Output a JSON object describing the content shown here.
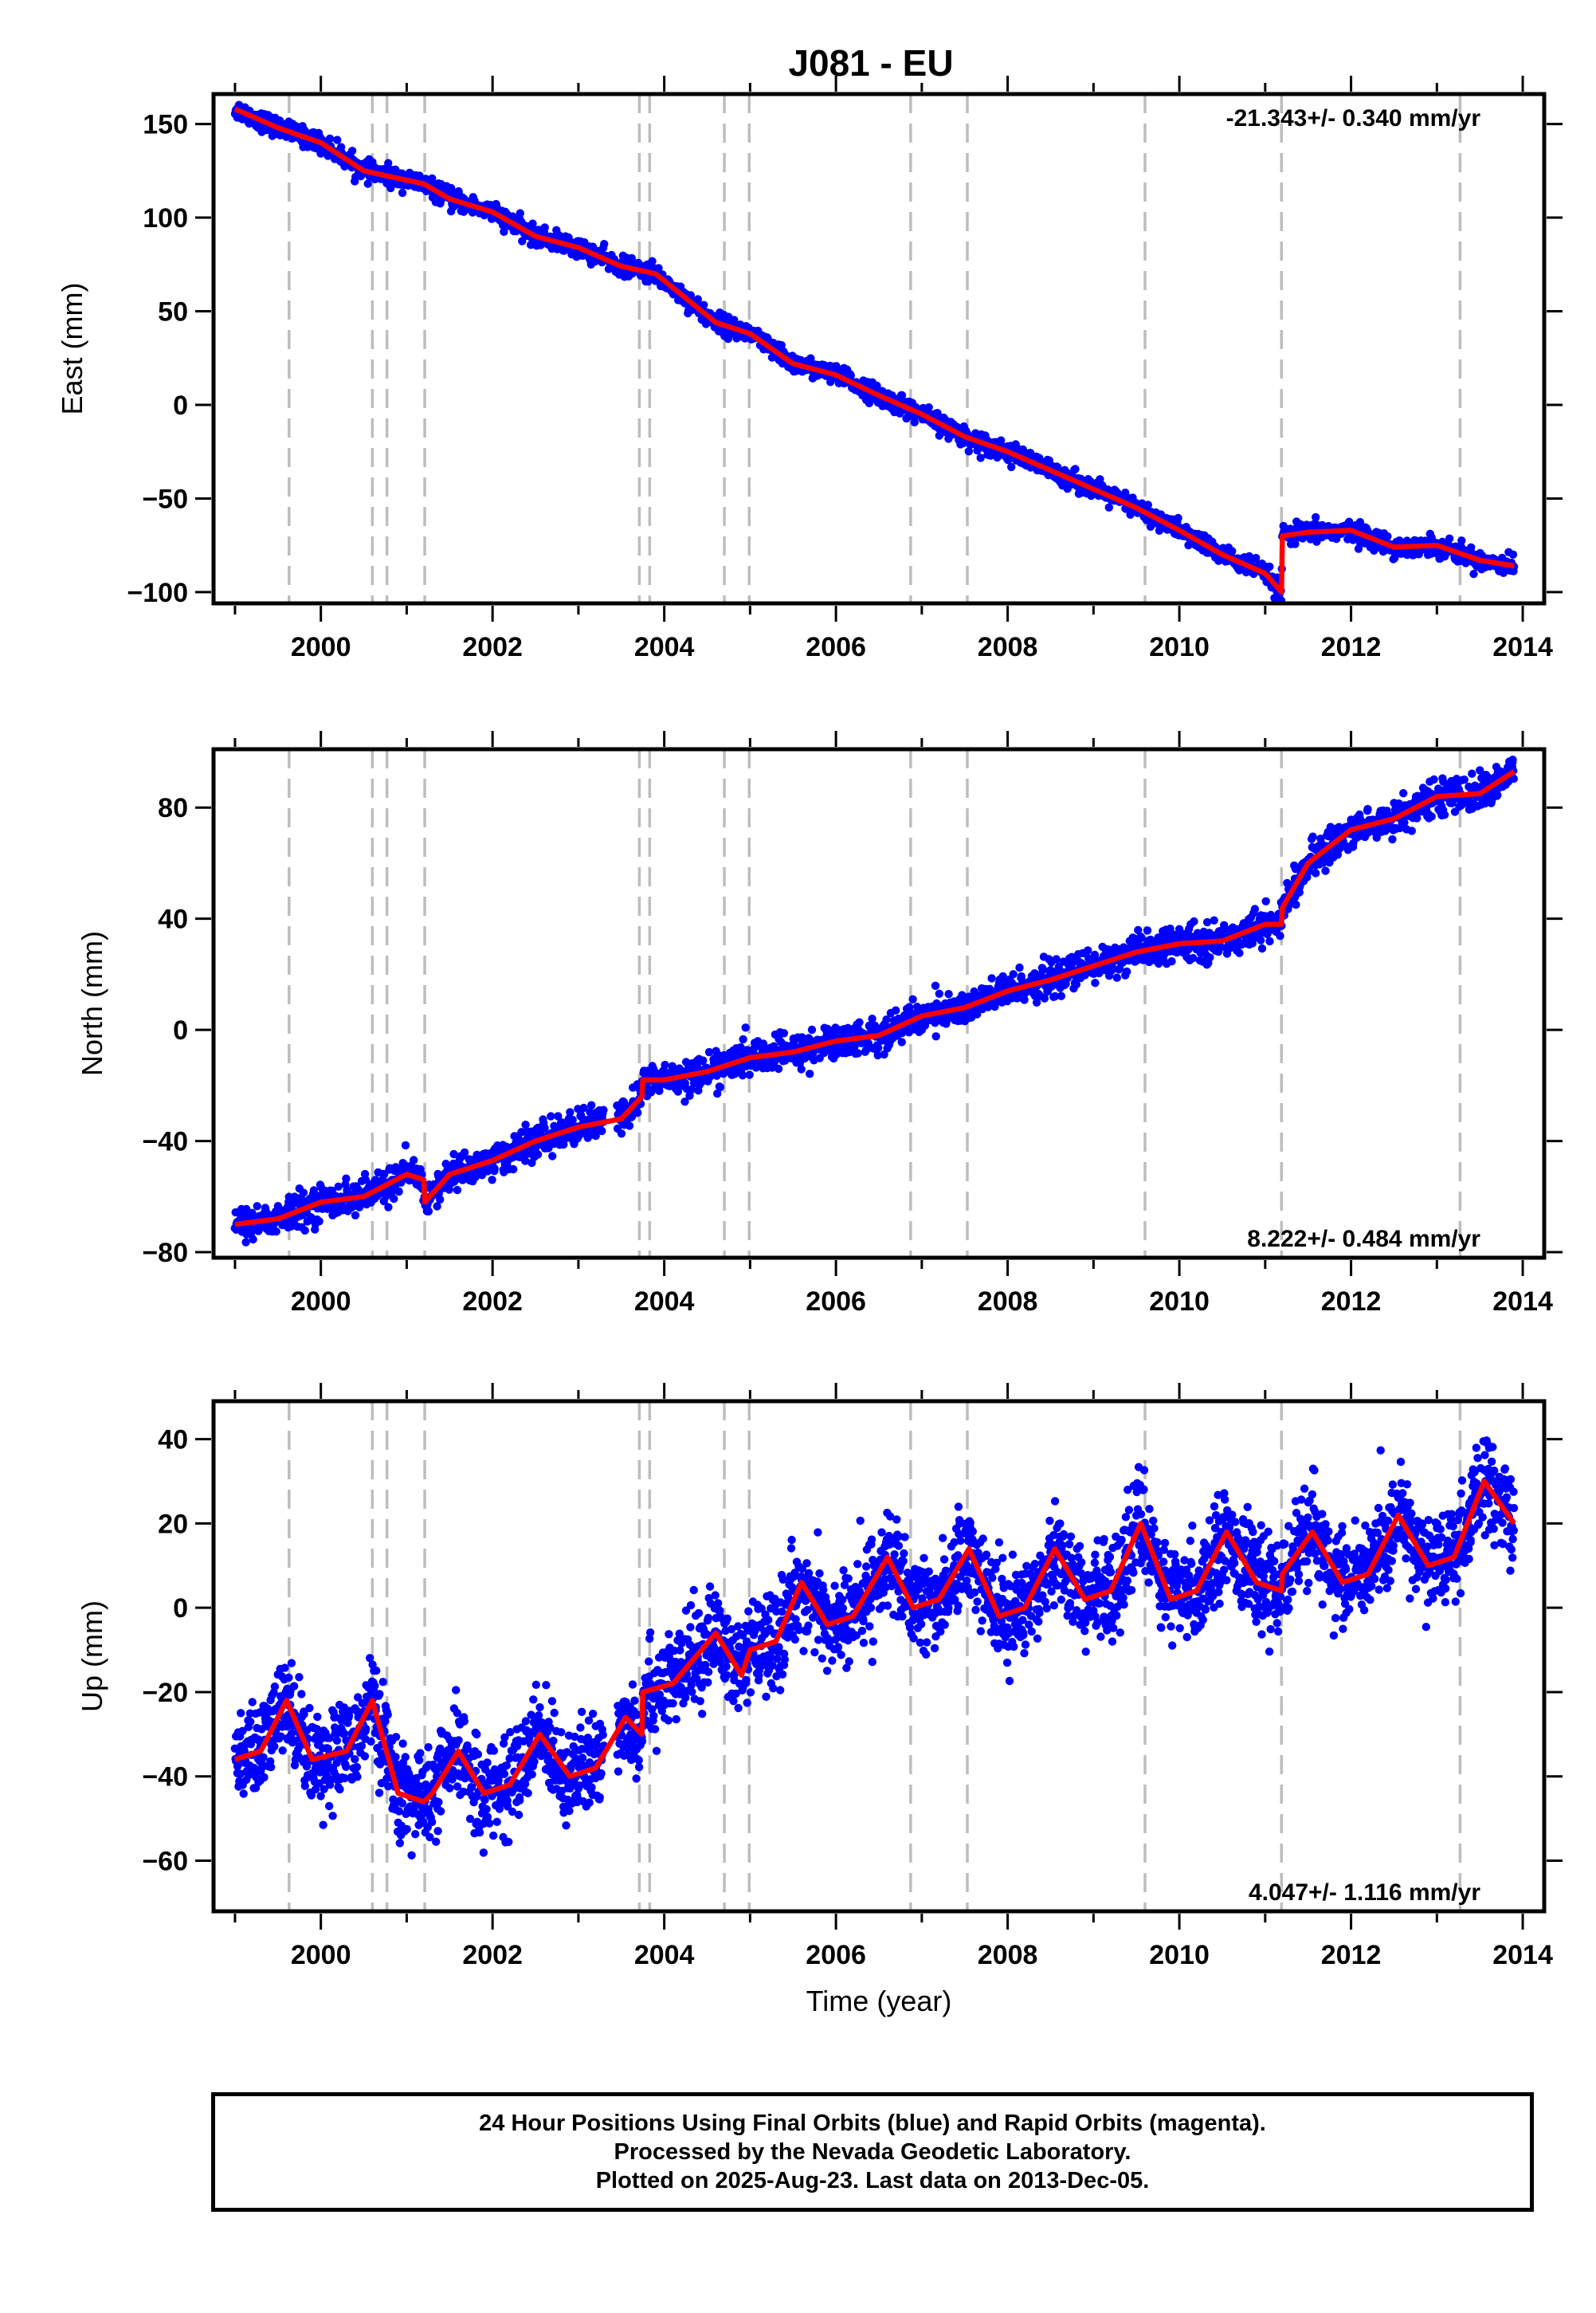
{
  "title": "J081 - EU",
  "colors": {
    "points": "#0000ff",
    "model": "#ff0000",
    "offset_line": "#bdbdbd",
    "frame": "#000000"
  },
  "chart_data": [
    {
      "type": "scatter",
      "name": "east",
      "ylabel": "East (mm)",
      "xlim": [
        1998.75,
        2014.25
      ],
      "ylim": [
        -106,
        166
      ],
      "yticks": [
        -100,
        -50,
        0,
        50,
        100,
        150
      ],
      "xticks": [
        2000,
        2002,
        2004,
        2006,
        2008,
        2010,
        2012,
        2014
      ],
      "rate_text": "-21.343+/- 0.340 mm/yr",
      "rate_position": "top-right",
      "model": [
        [
          1999.0,
          158
        ],
        [
          1999.5,
          148
        ],
        [
          2000.0,
          140
        ],
        [
          2000.5,
          125
        ],
        [
          2001.0,
          120
        ],
        [
          2001.2,
          118
        ],
        [
          2001.5,
          110
        ],
        [
          2002.0,
          103
        ],
        [
          2002.5,
          90
        ],
        [
          2003.0,
          84
        ],
        [
          2003.5,
          74
        ],
        [
          2003.9,
          70
        ],
        [
          2004.6,
          44
        ],
        [
          2005.0,
          38
        ],
        [
          2005.5,
          22
        ],
        [
          2006.0,
          16
        ],
        [
          2006.5,
          5
        ],
        [
          2007.0,
          -5
        ],
        [
          2007.5,
          -17
        ],
        [
          2008.0,
          -25
        ],
        [
          2008.5,
          -35
        ],
        [
          2009.0,
          -45
        ],
        [
          2009.5,
          -55
        ],
        [
          2010.0,
          -67
        ],
        [
          2010.5,
          -80
        ],
        [
          2011.0,
          -90
        ],
        [
          2011.19,
          -100
        ],
        [
          2011.2,
          -70
        ],
        [
          2011.5,
          -68
        ],
        [
          2012.0,
          -67
        ],
        [
          2012.5,
          -76
        ],
        [
          2013.0,
          -75
        ],
        [
          2013.5,
          -83
        ],
        [
          2013.9,
          -86
        ]
      ],
      "spread": 2.5
    },
    {
      "type": "scatter",
      "name": "north",
      "ylabel": "North (mm)",
      "xlim": [
        1998.75,
        2014.25
      ],
      "ylim": [
        -82,
        101
      ],
      "yticks": [
        -80,
        -40,
        0,
        40,
        80
      ],
      "xticks": [
        2000,
        2002,
        2004,
        2006,
        2008,
        2010,
        2012,
        2014
      ],
      "rate_text": "8.222+/- 0.484 mm/yr",
      "rate_position": "bottom-right",
      "model": [
        [
          1999.0,
          -70
        ],
        [
          1999.5,
          -68
        ],
        [
          2000.0,
          -62
        ],
        [
          2000.5,
          -60
        ],
        [
          2001.0,
          -52
        ],
        [
          2001.2,
          -54
        ],
        [
          2001.21,
          -62
        ],
        [
          2001.5,
          -52
        ],
        [
          2002.0,
          -47
        ],
        [
          2002.5,
          -40
        ],
        [
          2003.0,
          -35
        ],
        [
          2003.5,
          -32
        ],
        [
          2003.74,
          -24
        ],
        [
          2003.75,
          -18
        ],
        [
          2004.0,
          -18
        ],
        [
          2004.5,
          -15
        ],
        [
          2005.0,
          -10
        ],
        [
          2005.5,
          -8
        ],
        [
          2006.0,
          -4
        ],
        [
          2006.5,
          -2
        ],
        [
          2007.0,
          5
        ],
        [
          2007.5,
          8
        ],
        [
          2008.0,
          14
        ],
        [
          2008.5,
          18
        ],
        [
          2009.0,
          23
        ],
        [
          2009.5,
          28
        ],
        [
          2010.0,
          31
        ],
        [
          2010.5,
          32
        ],
        [
          2011.0,
          38
        ],
        [
          2011.19,
          38
        ],
        [
          2011.2,
          44
        ],
        [
          2011.5,
          60
        ],
        [
          2012.0,
          72
        ],
        [
          2012.5,
          76
        ],
        [
          2013.0,
          84
        ],
        [
          2013.5,
          85
        ],
        [
          2013.9,
          93
        ]
      ],
      "spread": 3.0
    },
    {
      "type": "scatter",
      "name": "up",
      "ylabel": "Up (mm)",
      "xlabel": "Time (year)",
      "xlim": [
        1998.75,
        2014.25
      ],
      "ylim": [
        -72,
        49
      ],
      "yticks": [
        -60,
        -40,
        -20,
        0,
        20,
        40
      ],
      "xticks": [
        2000,
        2002,
        2004,
        2006,
        2008,
        2010,
        2012,
        2014
      ],
      "rate_text": "4.047+/- 1.116 mm/yr",
      "rate_position": "bottom-right",
      "model": [
        [
          1999.0,
          -36
        ],
        [
          1999.3,
          -34
        ],
        [
          1999.6,
          -22
        ],
        [
          1999.9,
          -36
        ],
        [
          2000.3,
          -34
        ],
        [
          2000.6,
          -22
        ],
        [
          2000.9,
          -44
        ],
        [
          2001.2,
          -46
        ],
        [
          2001.3,
          -44
        ],
        [
          2001.6,
          -34
        ],
        [
          2001.9,
          -44
        ],
        [
          2002.2,
          -42
        ],
        [
          2002.55,
          -30
        ],
        [
          2002.9,
          -40
        ],
        [
          2003.2,
          -38
        ],
        [
          2003.55,
          -26
        ],
        [
          2003.74,
          -30
        ],
        [
          2003.75,
          -20
        ],
        [
          2004.1,
          -18
        ],
        [
          2004.6,
          -6
        ],
        [
          2004.9,
          -16
        ],
        [
          2005.0,
          -10
        ],
        [
          2005.3,
          -8
        ],
        [
          2005.6,
          6
        ],
        [
          2005.9,
          -4
        ],
        [
          2006.2,
          -2
        ],
        [
          2006.6,
          12
        ],
        [
          2006.9,
          0
        ],
        [
          2007.2,
          2
        ],
        [
          2007.55,
          14
        ],
        [
          2007.9,
          -2
        ],
        [
          2008.2,
          0
        ],
        [
          2008.55,
          14
        ],
        [
          2008.9,
          2
        ],
        [
          2009.2,
          4
        ],
        [
          2009.55,
          20
        ],
        [
          2009.9,
          2
        ],
        [
          2010.2,
          4
        ],
        [
          2010.55,
          18
        ],
        [
          2010.9,
          6
        ],
        [
          2011.19,
          4
        ],
        [
          2011.2,
          8
        ],
        [
          2011.55,
          18
        ],
        [
          2011.9,
          6
        ],
        [
          2012.2,
          8
        ],
        [
          2012.55,
          22
        ],
        [
          2012.9,
          10
        ],
        [
          2013.2,
          12
        ],
        [
          2013.55,
          30
        ],
        [
          2013.9,
          20
        ]
      ],
      "spread": 5.5
    }
  ],
  "offset_years": [
    1999.63,
    2000.6,
    2000.77,
    2001.21,
    2003.71,
    2003.83,
    2004.7,
    2004.99,
    2006.87,
    2007.53,
    2009.6,
    2011.19,
    2013.27
  ],
  "footer": {
    "line1": "24 Hour Positions Using Final Orbits (blue) and Rapid Orbits (magenta).",
    "line2": "Processed by the Nevada Geodetic Laboratory.",
    "line3": "Plotted on 2025-Aug-23. Last data on 2013-Dec-05."
  }
}
